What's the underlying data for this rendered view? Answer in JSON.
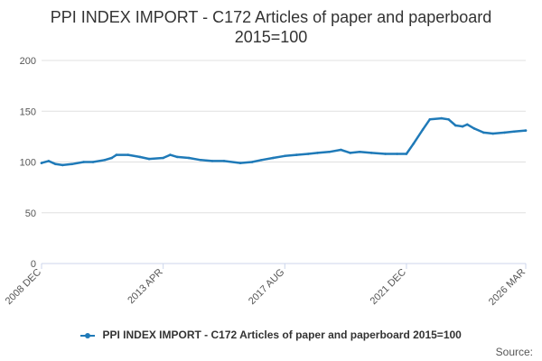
{
  "title_line1": "PPI INDEX IMPORT - C172 Articles of paper and paperboard",
  "title_line2": "2015=100",
  "legend_label": "PPI INDEX IMPORT - C172 Articles of paper and paperboard 2015=100",
  "source_label": "Source:",
  "colors": {
    "series": "#1f7ab8",
    "grid": "#e0e0e0",
    "axis": "#ccd6eb"
  },
  "chart_data": {
    "type": "line",
    "title": "PPI INDEX IMPORT - C172 Articles of paper and paperboard 2015=100",
    "xlabel": "",
    "ylabel": "",
    "ylim": [
      0,
      200
    ],
    "yticks": [
      0,
      50,
      100,
      150,
      200
    ],
    "xlim": [
      "2008-12",
      "2026-03"
    ],
    "xticks": [
      "2008 DEC",
      "2013 APR",
      "2017 AUG",
      "2021 DEC",
      "2026 MAR"
    ],
    "grid": true,
    "legend": "bottom",
    "series": [
      {
        "name": "PPI INDEX IMPORT - C172 Articles of paper and paperboard 2015=100",
        "points": [
          [
            "2008-12",
            99
          ],
          [
            "2009-03",
            101
          ],
          [
            "2009-06",
            98
          ],
          [
            "2009-09",
            97
          ],
          [
            "2010-01",
            98
          ],
          [
            "2010-06",
            100
          ],
          [
            "2010-10",
            100
          ],
          [
            "2011-03",
            102
          ],
          [
            "2011-06",
            104
          ],
          [
            "2011-08",
            107
          ],
          [
            "2012-01",
            107
          ],
          [
            "2012-06",
            105
          ],
          [
            "2012-10",
            103
          ],
          [
            "2013-04",
            104
          ],
          [
            "2013-07",
            107
          ],
          [
            "2013-10",
            105
          ],
          [
            "2014-03",
            104
          ],
          [
            "2014-08",
            102
          ],
          [
            "2015-01",
            101
          ],
          [
            "2015-06",
            101
          ],
          [
            "2016-01",
            99
          ],
          [
            "2016-06",
            100
          ],
          [
            "2016-10",
            102
          ],
          [
            "2017-03",
            104
          ],
          [
            "2017-08",
            106
          ],
          [
            "2018-01",
            107
          ],
          [
            "2018-06",
            108
          ],
          [
            "2018-10",
            109
          ],
          [
            "2019-03",
            110
          ],
          [
            "2019-08",
            112
          ],
          [
            "2019-12",
            109
          ],
          [
            "2020-04",
            110
          ],
          [
            "2020-09",
            109
          ],
          [
            "2021-03",
            108
          ],
          [
            "2021-08",
            108
          ],
          [
            "2021-12",
            108
          ],
          [
            "2022-03",
            118
          ],
          [
            "2022-07",
            132
          ],
          [
            "2022-10",
            142
          ],
          [
            "2023-03",
            143
          ],
          [
            "2023-06",
            142
          ],
          [
            "2023-09",
            136
          ],
          [
            "2023-12",
            135
          ],
          [
            "2024-02",
            137
          ],
          [
            "2024-05",
            133
          ],
          [
            "2024-09",
            129
          ],
          [
            "2025-01",
            128
          ],
          [
            "2025-06",
            129
          ],
          [
            "2025-10",
            130
          ],
          [
            "2026-03",
            131
          ]
        ]
      }
    ]
  }
}
